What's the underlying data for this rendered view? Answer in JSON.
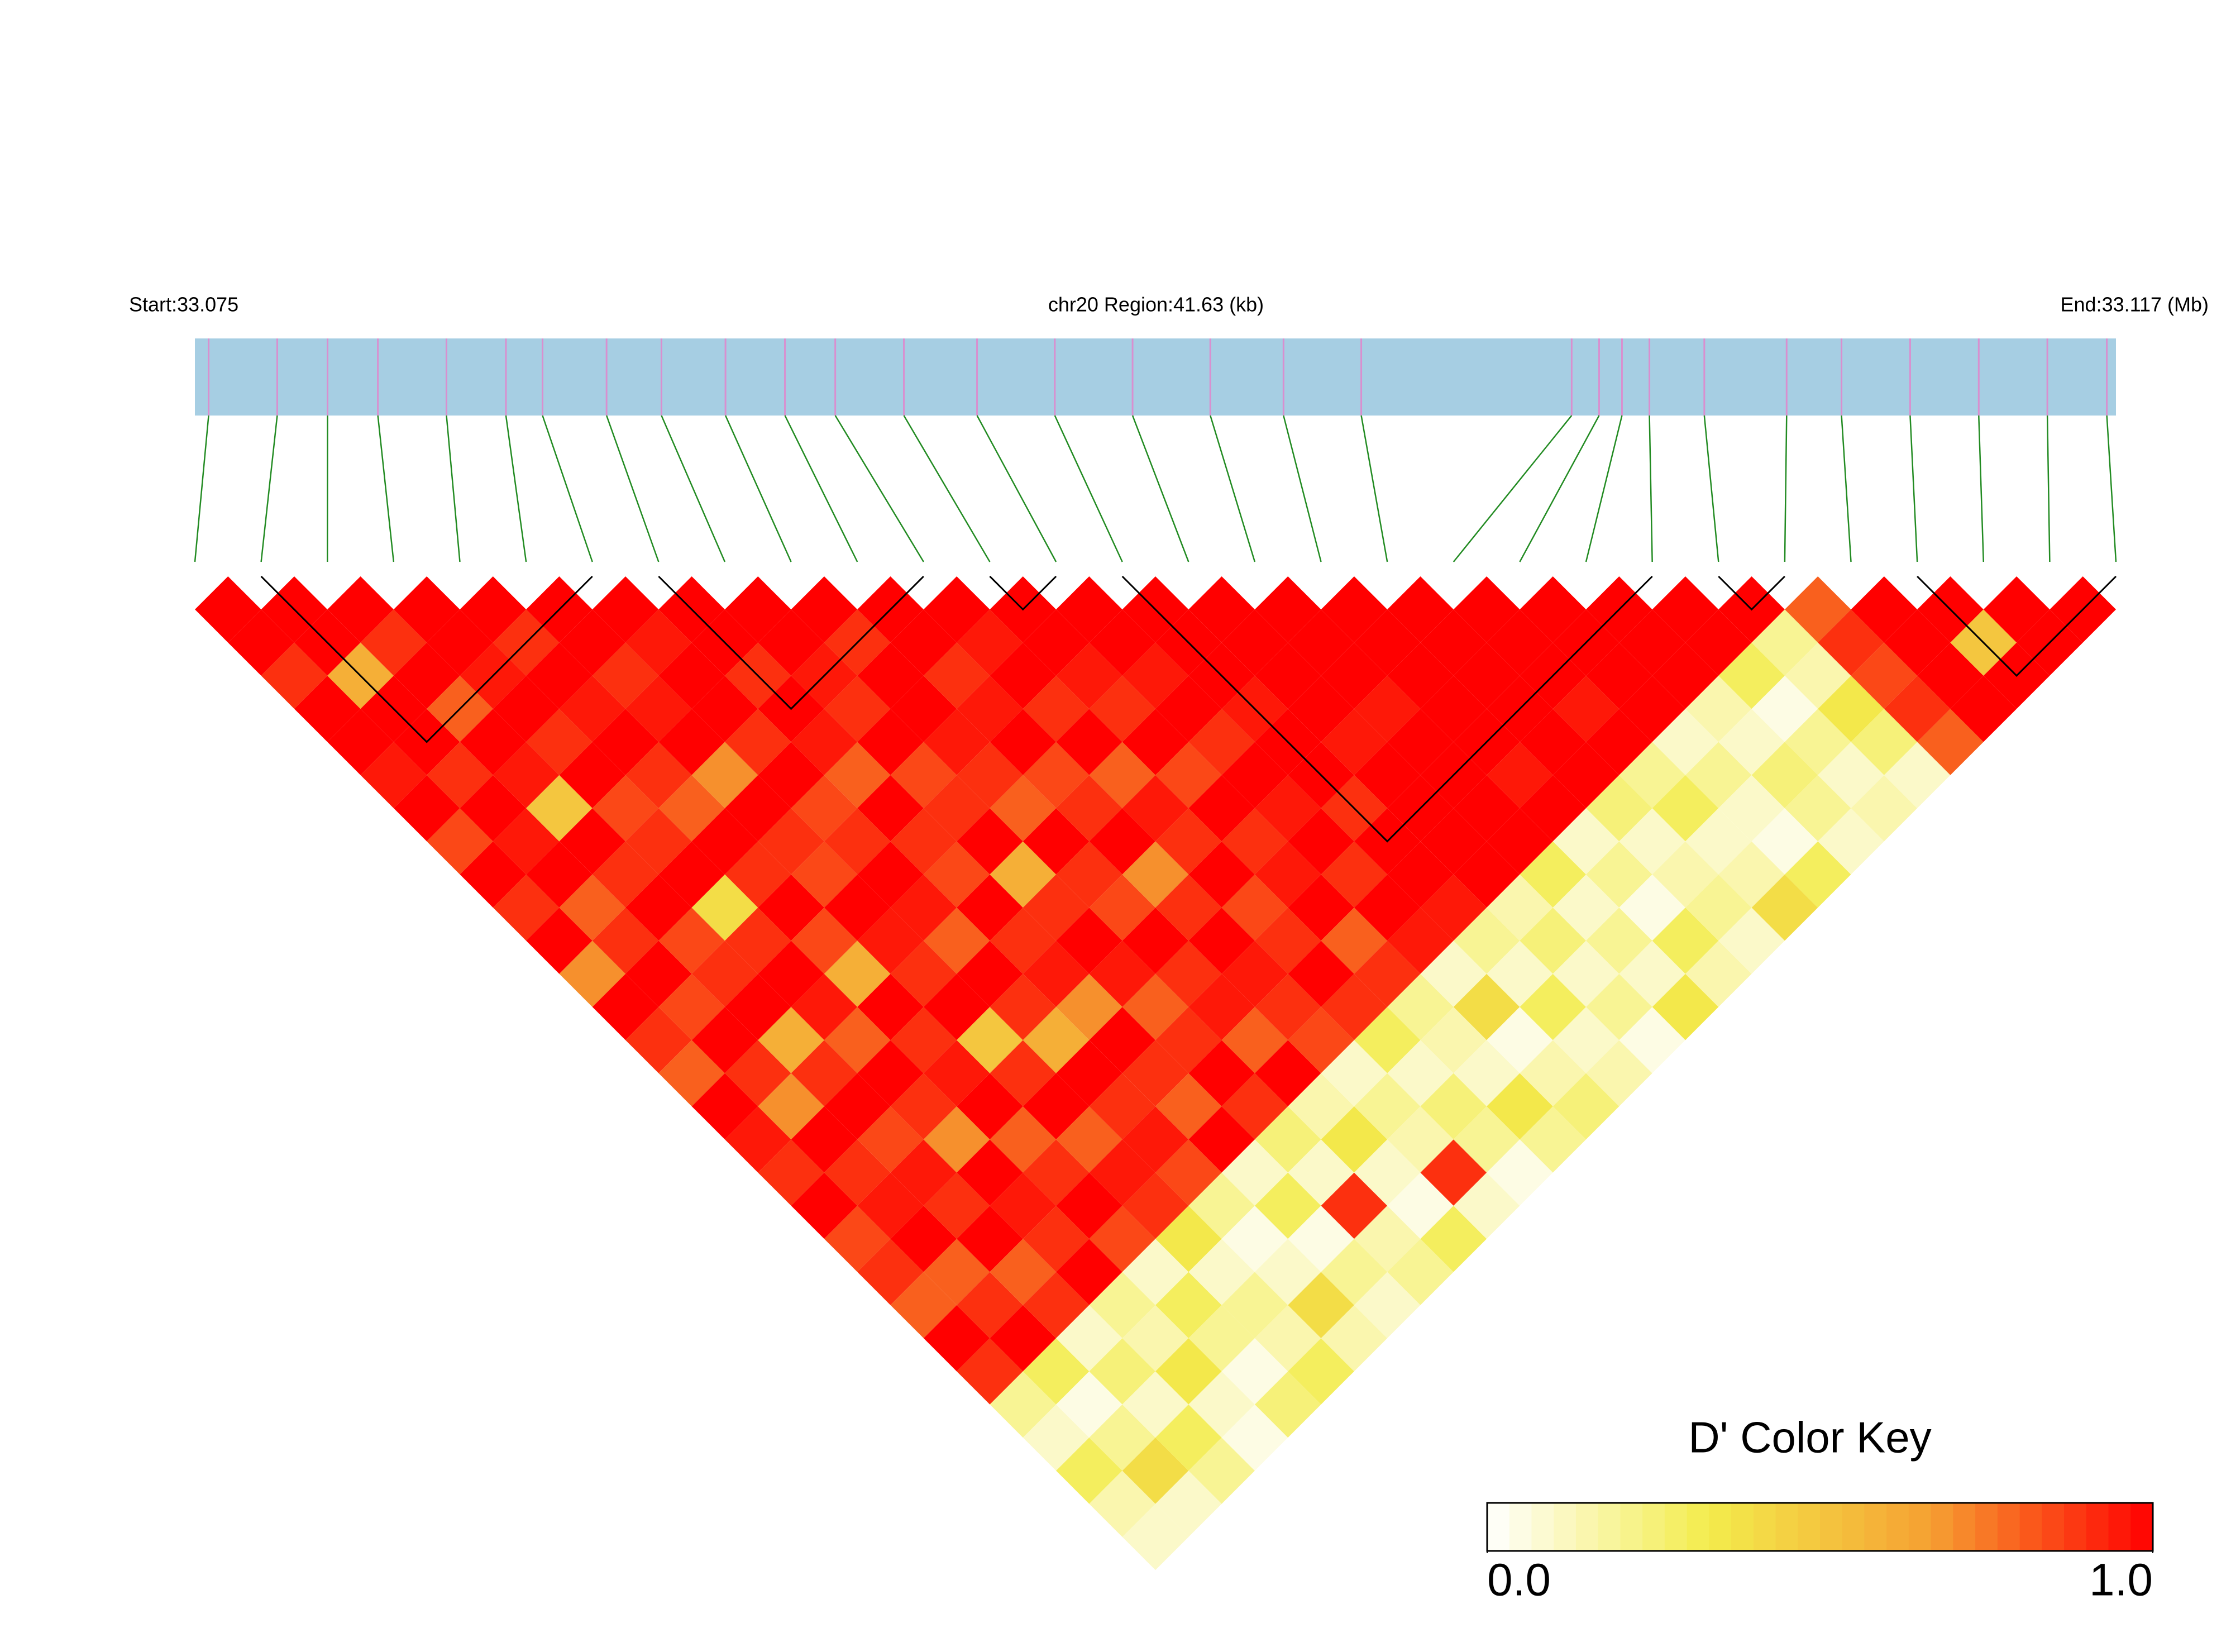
{
  "chart_data": {
    "type": "ld_heatmap",
    "start_label": "Start:33.075",
    "region_label": "chr20 Region:41.63 (kb)",
    "end_label": "End:33.117 (Mb)",
    "xlim": [
      33.075,
      33.117
    ],
    "positions": [
      33.0753,
      33.0768,
      33.0779,
      33.079,
      33.0805,
      33.0818,
      33.0826,
      33.084,
      33.0852,
      33.0866,
      33.0879,
      33.089,
      33.0905,
      33.0921,
      33.0938,
      33.0955,
      33.0972,
      33.0988,
      33.1005,
      33.1051,
      33.1057,
      33.1062,
      33.1068,
      33.108,
      33.1098,
      33.111,
      33.1125,
      33.114,
      33.1155,
      33.1168
    ],
    "ld": [
      [
        1,
        1,
        0.9,
        1,
        1,
        0.95,
        1,
        0.85,
        1,
        0.9,
        1,
        0.7,
        1,
        0.9,
        0.8,
        1,
        0.95,
        0.9,
        1,
        0.85,
        0.9,
        0.8,
        1,
        0.9,
        0.2,
        0.1,
        0.3,
        0.15,
        0.1
      ],
      [
        1,
        1,
        0.6,
        1,
        1,
        0.9,
        1,
        0.95,
        1,
        0.8,
        0.9,
        1,
        0.85,
        1,
        0.9,
        0.7,
        1,
        0.9,
        0.95,
        1,
        0.8,
        0.9,
        1,
        0.3,
        0.05,
        0.2,
        0.4,
        0.1
      ],
      [
        1,
        0.9,
        1,
        0.8,
        1,
        0.95,
        0.5,
        1,
        0.9,
        1,
        0.85,
        0.9,
        1,
        0.6,
        0.9,
        1,
        0.85,
        0.95,
        0.9,
        1,
        0.8,
        0.9,
        0.1,
        0.25,
        0.1,
        0.3,
        0.2
      ],
      [
        1,
        1,
        0.95,
        1,
        0.9,
        1,
        0.85,
        0.9,
        1,
        0.4,
        0.9,
        1,
        0.95,
        0.8,
        1,
        0.9,
        0.7,
        1,
        0.95,
        0.9,
        1,
        0.2,
        0.15,
        0.35,
        0.1,
        0.05
      ],
      [
        1,
        0.9,
        1,
        0.95,
        1,
        0.9,
        0.8,
        1,
        0.9,
        1,
        0.85,
        0.6,
        1,
        0.9,
        0.95,
        1,
        0.8,
        0.9,
        1,
        0.85,
        0.1,
        0.3,
        0.2,
        0.05,
        0.25
      ],
      [
        1,
        1,
        0.9,
        0.95,
        1,
        0.7,
        1,
        0.9,
        0.85,
        1,
        0.95,
        0.9,
        1,
        0.5,
        0.9,
        1,
        0.8,
        0.95,
        0.9,
        0.35,
        0.1,
        0.2,
        0.15,
        0.3
      ],
      [
        1,
        0.95,
        1,
        1,
        0.9,
        1,
        0.85,
        0.9,
        1,
        0.95,
        0.8,
        1,
        0.9,
        0.6,
        1,
        0.9,
        0.95,
        0.85,
        0.2,
        0.05,
        0.1,
        0.4,
        0.15
      ],
      [
        1,
        1,
        0.9,
        1,
        0.95,
        0.8,
        1,
        0.9,
        0.85,
        1,
        0.9,
        0.95,
        0.7,
        1,
        0.9,
        0.8,
        1,
        0.1,
        0.3,
        0.05,
        0.2,
        0.1
      ],
      [
        1,
        1,
        0.95,
        0.9,
        1,
        0.85,
        0.9,
        1,
        0.6,
        0.9,
        1,
        0.95,
        0.8,
        0.9,
        1,
        0.9,
        0.25,
        0.1,
        0.9,
        0.15,
        0.2
      ],
      [
        1,
        0.9,
        1,
        1,
        0.95,
        0.9,
        0.8,
        1,
        0.9,
        0.85,
        1,
        0.9,
        0.95,
        0.8,
        1,
        0.15,
        0.35,
        0.1,
        0.05,
        0.3
      ],
      [
        1,
        1,
        0.9,
        0.95,
        1,
        0.85,
        0.9,
        1,
        0.7,
        0.9,
        1,
        0.95,
        0.9,
        0.85,
        0.1,
        0.2,
        0.15,
        0.9,
        0.1
      ],
      [
        1,
        0.95,
        1,
        0.9,
        1,
        0.8,
        0.95,
        0.9,
        1,
        0.85,
        0.9,
        1,
        0.9,
        0.3,
        0.1,
        0.25,
        0.2,
        0.05
      ],
      [
        1,
        1,
        0.95,
        0.9,
        1,
        0.85,
        1,
        0.9,
        0.95,
        1,
        0.8,
        0.9,
        0.2,
        0.15,
        0.1,
        0.35,
        0.2
      ],
      [
        1,
        1,
        0.95,
        1,
        0.9,
        1,
        0.95,
        1,
        0.9,
        1,
        0.95,
        0.1,
        0.4,
        0.05,
        0.15,
        0.25
      ],
      [
        1,
        1,
        1,
        0.95,
        1,
        1,
        0.9,
        1,
        1,
        0.95,
        0.2,
        0.1,
        0.3,
        0.1,
        0.15
      ],
      [
        1,
        1,
        1,
        1,
        0.95,
        1,
        1,
        1,
        1,
        0.15,
        0.25,
        0.1,
        0.2,
        0.05
      ],
      [
        1,
        1,
        1,
        0.95,
        1,
        1,
        1,
        1,
        0.3,
        0.1,
        0.2,
        0.1,
        0.35
      ],
      [
        1,
        1,
        1,
        1,
        1,
        0.95,
        1,
        0.1,
        0.2,
        0.05,
        0.3,
        0.15
      ],
      [
        1,
        1,
        1,
        1,
        1,
        1,
        0.25,
        0.1,
        0.15,
        0.2,
        0.1
      ],
      [
        1,
        1,
        1,
        0.95,
        1,
        0.2,
        0.3,
        0.1,
        0.15,
        0.4
      ],
      [
        1,
        1,
        1,
        1,
        0.1,
        0.2,
        0.1,
        0.05,
        0.3
      ],
      [
        1,
        1,
        1,
        0.15,
        0.1,
        0.25,
        0.2,
        0.1
      ],
      [
        1,
        1,
        0.3,
        0.05,
        0.2,
        0.1,
        0.15
      ],
      [
        1,
        0.2,
        0.15,
        0.35,
        0.25,
        0.1
      ],
      [
        0.8,
        0.9,
        0.85,
        0.9,
        0.8
      ],
      [
        1,
        1,
        1,
        1
      ],
      [
        1,
        0.5,
        1
      ],
      [
        1,
        1
      ],
      [
        1
      ]
    ],
    "blocks": [
      [
        1,
        6
      ],
      [
        7,
        11
      ],
      [
        12,
        13
      ],
      [
        14,
        22
      ],
      [
        23,
        24
      ],
      [
        26,
        29
      ]
    ],
    "colors": [
      "#ffffff",
      "#f3ec4c",
      "#f5a032",
      "#ff0000"
    ],
    "bar_color": "#a6cee3",
    "snp_line_color": "#d98fcf",
    "connector_color": "#228b22",
    "key": {
      "title": "D' Color Key",
      "xlim": [
        0,
        1
      ],
      "xticks": [
        {
          "value": 0,
          "label": "0.0"
        },
        {
          "value": 1,
          "label": "1.0"
        }
      ]
    }
  }
}
